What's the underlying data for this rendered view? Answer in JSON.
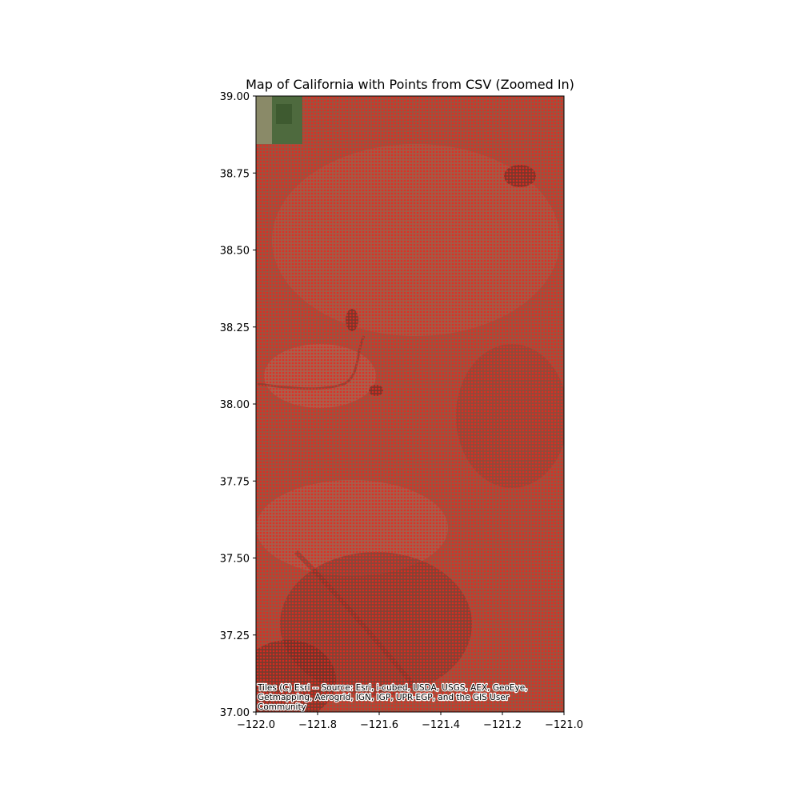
{
  "chart_data": {
    "type": "map",
    "title": "Map of California with Points from CSV (Zoomed In)",
    "xlim": [
      -122.0,
      -121.0
    ],
    "ylim": [
      37.0,
      39.0
    ],
    "x_ticks": [
      -122.0,
      -121.8,
      -121.6,
      -121.4,
      -121.2,
      -121.0
    ],
    "x_tick_labels": [
      "−122.0",
      "−121.8",
      "−121.6",
      "−121.4",
      "−121.2",
      "−121.0"
    ],
    "y_ticks": [
      37.0,
      37.25,
      37.5,
      37.75,
      38.0,
      38.25,
      38.5,
      38.75,
      39.0
    ],
    "y_tick_labels": [
      "37.00",
      "37.25",
      "37.50",
      "37.75",
      "38.00",
      "38.25",
      "38.50",
      "38.75",
      "39.00"
    ],
    "basemap": "satellite imagery",
    "point_color": "#e8281e",
    "point_grid_extent": {
      "lon": [
        -122.0,
        -121.0
      ],
      "lat": [
        37.0,
        39.0
      ],
      "excluded_corner": {
        "lon": [
          -122.0,
          -121.85
        ],
        "lat": [
          38.84,
          39.0
        ]
      }
    },
    "attribution_lines": [
      "Tiles (C) Esri -- Source: Esri, i-cubed, USDA, USGS, AEX, GeoEye,",
      "Getmapping, Aerogrid, IGN, IGP, UPR-EGP, and the GIS User",
      "Community"
    ]
  }
}
